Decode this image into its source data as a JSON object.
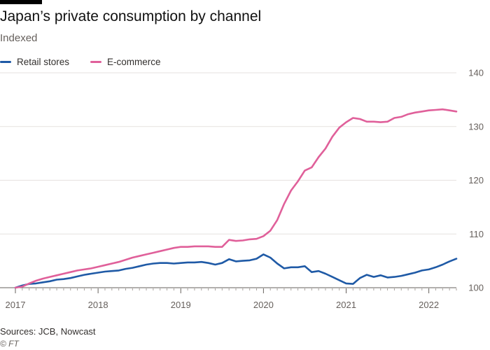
{
  "chart_data": {
    "type": "line",
    "title": "Japan’s private consumption by channel",
    "subtitle": "Indexed",
    "source": "Sources: JCB, Nowcast",
    "credit": "© FT",
    "ylim": [
      100,
      140
    ],
    "y_ticks": [
      100,
      110,
      120,
      130,
      140
    ],
    "x_ticks": [
      "2017",
      "2018",
      "2019",
      "2020",
      "2021",
      "2022"
    ],
    "x_start": "2017-01",
    "x_end": "2022-06",
    "gridlines": true,
    "legend_position": "top-left",
    "series": [
      {
        "name": "Retail stores",
        "color": "#1f5aa6",
        "values": [
          100.0,
          100.4,
          100.7,
          100.8,
          101.0,
          101.2,
          101.5,
          101.6,
          101.8,
          102.1,
          102.4,
          102.6,
          102.8,
          103.0,
          103.1,
          103.2,
          103.5,
          103.7,
          104.0,
          104.3,
          104.5,
          104.6,
          104.6,
          104.5,
          104.6,
          104.7,
          104.7,
          104.8,
          104.6,
          104.3,
          104.6,
          105.3,
          104.9,
          105.0,
          105.1,
          105.4,
          106.2,
          105.6,
          104.5,
          103.6,
          103.8,
          103.8,
          104.0,
          102.9,
          103.1,
          102.6,
          102.0,
          101.4,
          100.8,
          100.7,
          101.8,
          102.4,
          102.0,
          102.3,
          101.9,
          102.0,
          102.2,
          102.5,
          102.8,
          103.2,
          103.4,
          103.8,
          104.3,
          104.9,
          105.4
        ]
      },
      {
        "name": "E-commerce",
        "color": "#e0609a",
        "values": [
          100.0,
          100.2,
          100.8,
          101.3,
          101.7,
          102.0,
          102.3,
          102.6,
          102.9,
          103.2,
          103.4,
          103.6,
          103.9,
          104.2,
          104.5,
          104.8,
          105.2,
          105.6,
          105.9,
          106.2,
          106.5,
          106.8,
          107.1,
          107.4,
          107.6,
          107.6,
          107.7,
          107.7,
          107.7,
          107.6,
          107.6,
          108.9,
          108.7,
          108.8,
          109.0,
          109.1,
          109.6,
          110.6,
          112.6,
          115.6,
          118.1,
          119.8,
          121.8,
          122.4,
          124.3,
          125.9,
          128.1,
          129.8,
          130.8,
          131.6,
          131.4,
          130.9,
          130.9,
          130.8,
          130.9,
          131.6,
          131.8,
          132.3,
          132.6,
          132.8,
          133.0,
          133.1,
          133.2,
          133.0,
          132.8
        ]
      }
    ]
  }
}
